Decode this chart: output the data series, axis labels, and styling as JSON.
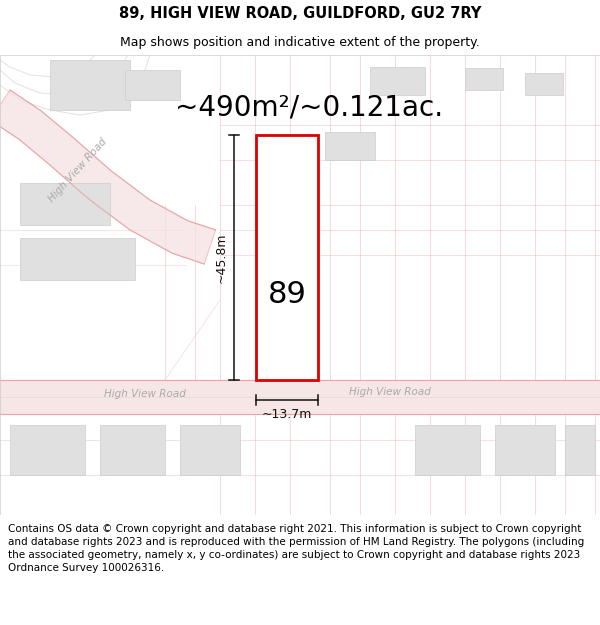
{
  "title": "89, HIGH VIEW ROAD, GUILDFORD, GU2 7RY",
  "subtitle": "Map shows position and indicative extent of the property.",
  "area_label": "~490m²/~0.121ac.",
  "width_label": "~13.7m",
  "height_label": "~45.8m",
  "plot_number": "89",
  "footer": "Contains OS data © Crown copyright and database right 2021. This information is subject to Crown copyright and database rights 2023 and is reproduced with the permission of HM Land Registry. The polygons (including the associated geometry, namely x, y co-ordinates) are subject to Crown copyright and database rights 2023 Ordnance Survey 100026316.",
  "bg_color": "#ffffff",
  "map_bg": "#ffffff",
  "road_color": "#f0b8b8",
  "road_fill": "#f5e0e0",
  "road_edge": "#e8a0a0",
  "building_color": "#e0e0e0",
  "building_edge": "#cccccc",
  "plot_fill": "#ffffff",
  "plot_border": "#dd0000",
  "road_label_color": "#aaaaaa",
  "dim_color": "#111111",
  "contour_color": "#d8c8c8",
  "title_fontsize": 10.5,
  "subtitle_fontsize": 9,
  "area_fontsize": 20,
  "plot_num_fontsize": 22,
  "dim_fontsize": 9,
  "road_label_fontsize": 7.5,
  "footer_fontsize": 7.5
}
